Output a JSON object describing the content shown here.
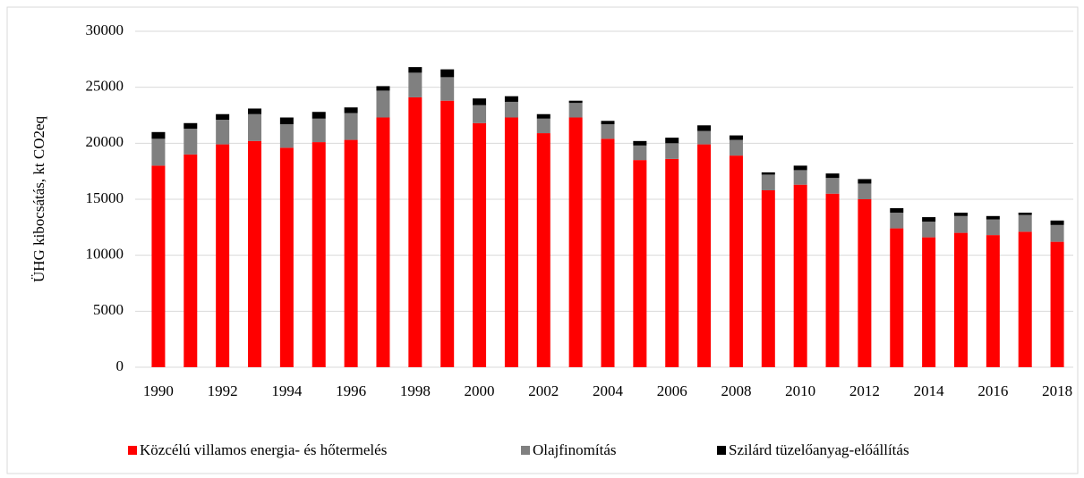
{
  "chart_data": {
    "type": "stacked_bar",
    "y_label": "ÜHG kibocsátás, kt CO2eq",
    "categories": [
      1990,
      null,
      1992,
      null,
      1994,
      null,
      1996,
      null,
      1998,
      null,
      2000,
      null,
      2002,
      null,
      2004,
      null,
      2006,
      null,
      2008,
      null,
      2010,
      null,
      2012,
      null,
      2014,
      null,
      2016,
      null,
      2018
    ],
    "series": [
      {
        "name": "Közcélú villamos energia- és hőtermelés",
        "color": "#ff0000",
        "values": [
          18000,
          19000,
          19900,
          20200,
          19600,
          20100,
          20300,
          22300,
          24100,
          23800,
          21800,
          22300,
          20900,
          22300,
          20400,
          18500,
          18600,
          19900,
          18900,
          15800,
          16300,
          15500,
          15000,
          12400,
          11600,
          12000,
          11800,
          12100,
          11200
        ]
      },
      {
        "name": "Olajfinomítás",
        "color": "#808080",
        "values": [
          2400,
          2300,
          2200,
          2400,
          2100,
          2100,
          2400,
          2400,
          2200,
          2100,
          1600,
          1400,
          1300,
          1300,
          1300,
          1300,
          1400,
          1200,
          1400,
          1400,
          1300,
          1400,
          1400,
          1400,
          1400,
          1500,
          1400,
          1500,
          1500
        ]
      },
      {
        "name": "Szilárd tüzelőanyag-előállítás",
        "color": "#000000",
        "values": [
          600,
          500,
          500,
          500,
          600,
          600,
          500,
          400,
          500,
          700,
          600,
          500,
          400,
          200,
          300,
          400,
          500,
          500,
          400,
          200,
          400,
          400,
          400,
          400,
          400,
          300,
          300,
          200,
          400
        ]
      }
    ],
    "ylim": [
      0,
      30000
    ],
    "yticks": [
      0,
      5000,
      10000,
      15000,
      20000,
      25000,
      30000
    ],
    "grid": true,
    "legend": "bottom"
  }
}
